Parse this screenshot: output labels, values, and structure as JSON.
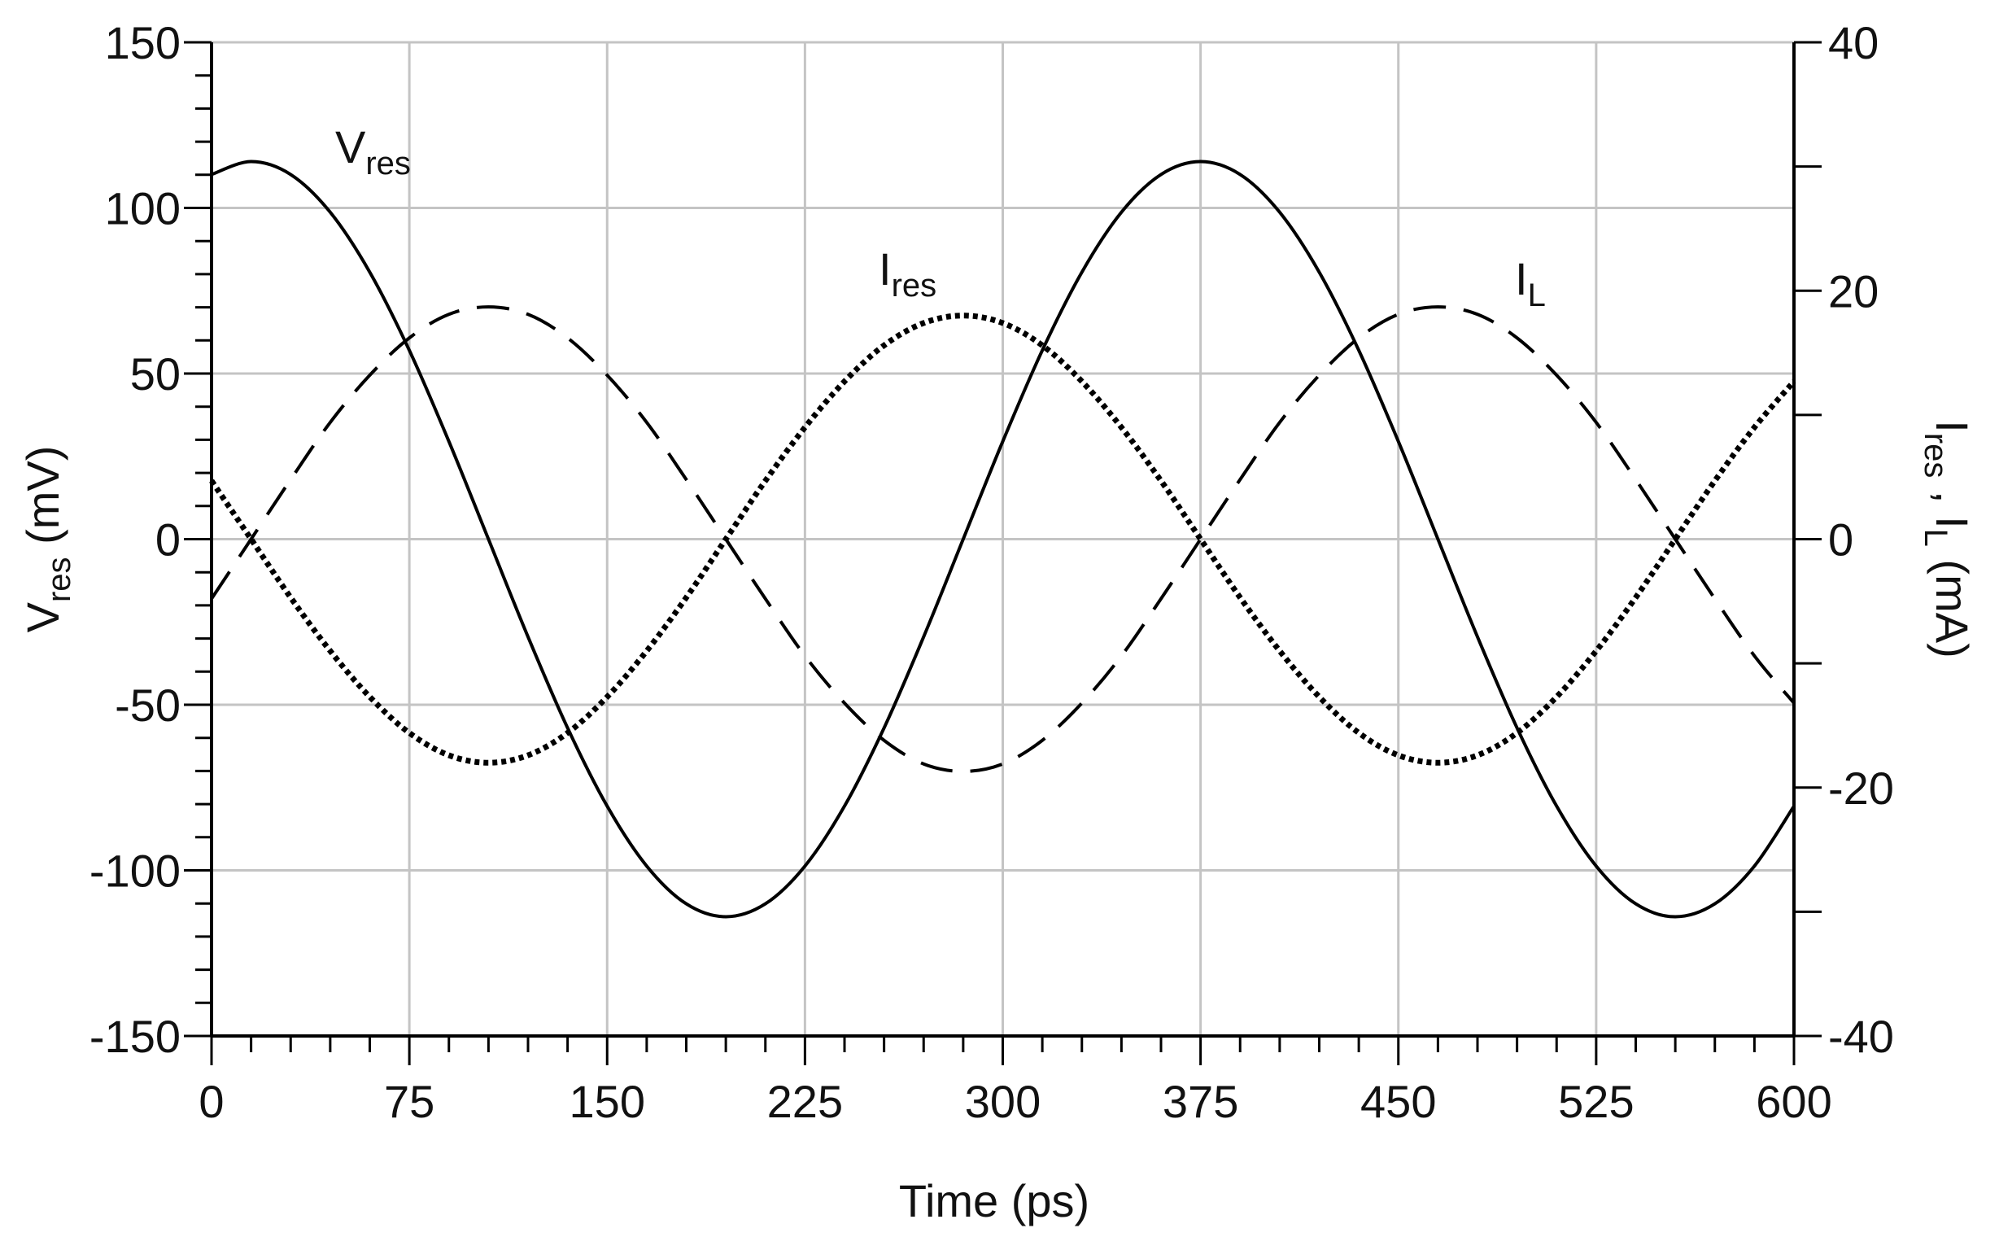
{
  "chart_data": {
    "type": "line",
    "xlabel": "Time (ps)",
    "ylabel": [
      "V",
      "res",
      " (mV)"
    ],
    "y2label": [
      "I",
      "res",
      " , I",
      "L",
      " (mA)"
    ],
    "annotations": [
      {
        "text": [
          "V",
          "res"
        ]
      },
      {
        "text": [
          "I",
          "res"
        ]
      },
      {
        "text": [
          "I",
          "L"
        ]
      }
    ],
    "xlim": [
      0,
      600
    ],
    "xticks": [
      0,
      75,
      150,
      225,
      300,
      375,
      450,
      525,
      600
    ],
    "xminorticks": [
      15,
      30,
      45,
      60,
      90,
      105,
      120,
      135,
      165,
      180,
      195,
      210,
      240,
      255,
      270,
      285,
      315,
      330,
      345,
      360,
      390,
      405,
      420,
      435,
      465,
      480,
      495,
      510,
      540,
      555,
      570,
      585
    ],
    "ylim": [
      -150,
      150
    ],
    "yticks": [
      -150,
      -100,
      -50,
      0,
      50,
      100,
      150
    ],
    "yminorticks": [
      -140,
      -130,
      -120,
      -110,
      -90,
      -80,
      -70,
      -60,
      -40,
      -30,
      -20,
      -10,
      10,
      20,
      30,
      40,
      60,
      70,
      80,
      90,
      110,
      120,
      130,
      140
    ],
    "y2lim": [
      -40,
      40
    ],
    "y2ticks": [
      -40,
      -20,
      0,
      20,
      40
    ],
    "y2minorticks": [
      -30,
      -10,
      10,
      30
    ],
    "grid": true,
    "x": [
      0,
      15,
      30,
      45,
      60,
      75,
      90,
      105,
      120,
      135,
      150,
      165,
      180,
      195,
      210,
      225,
      240,
      255,
      270,
      285,
      300,
      315,
      330,
      345,
      360,
      375,
      390,
      405,
      420,
      435,
      450,
      465,
      480,
      495,
      510,
      525,
      540,
      555,
      570,
      585,
      600
    ],
    "series": [
      {
        "color": "#000000",
        "style": "solid",
        "axis": "y",
        "values": [
          110.1,
          114.0,
          110.1,
          98.7,
          80.6,
          57.0,
          29.5,
          0,
          -29.5,
          -57.0,
          -80.6,
          -98.7,
          -110.1,
          -114.0,
          -110.1,
          -98.7,
          -80.6,
          -57.0,
          -29.5,
          0,
          29.5,
          57.0,
          80.6,
          98.7,
          110.1,
          114.0,
          110.1,
          98.7,
          80.6,
          57.0,
          29.5,
          0,
          -29.5,
          -57.0,
          -80.6,
          -98.7,
          -110.1,
          -114.0,
          -110.1,
          -98.7,
          -80.6
        ]
      },
      {
        "color": "#000000",
        "style": "dotted",
        "axis": "y2",
        "values": [
          4.7,
          0,
          -4.7,
          -9.0,
          -12.7,
          -15.6,
          -17.4,
          -18.0,
          -17.4,
          -15.6,
          -12.7,
          -9.0,
          -4.7,
          0,
          4.7,
          9.0,
          12.7,
          15.6,
          17.4,
          18.0,
          17.4,
          15.6,
          12.7,
          9.0,
          4.7,
          0,
          -4.7,
          -9.0,
          -12.7,
          -15.6,
          -17.4,
          -18.0,
          -17.4,
          -15.6,
          -12.7,
          -9.0,
          -4.7,
          0,
          4.7,
          9.0,
          12.7
        ]
      },
      {
        "color": "#000000",
        "style": "dashed",
        "axis": "y2",
        "values": [
          -4.8,
          0,
          4.8,
          9.4,
          13.2,
          16.2,
          18.1,
          18.7,
          18.1,
          16.2,
          13.2,
          9.4,
          4.8,
          0,
          -4.8,
          -9.4,
          -13.2,
          -16.2,
          -18.1,
          -18.7,
          -18.1,
          -16.2,
          -13.2,
          -9.4,
          -4.8,
          0,
          4.8,
          9.4,
          13.2,
          16.2,
          18.1,
          18.7,
          18.1,
          16.2,
          13.2,
          9.4,
          4.8,
          0,
          -4.8,
          -9.4,
          -13.2
        ]
      }
    ]
  }
}
